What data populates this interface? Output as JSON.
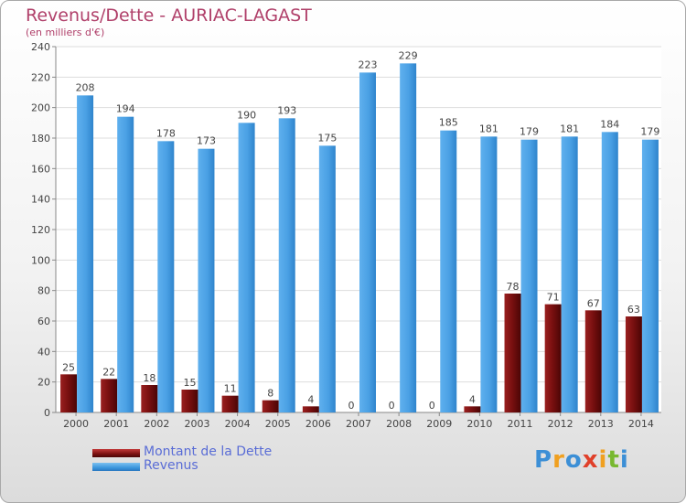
{
  "title": "Revenus/Dette - AURIAC-LAGAST",
  "subtitle": "(en milliers d'€)",
  "colors": {
    "dette": "#7a1010",
    "revenus": "#3c96dc",
    "title": "#b0406a",
    "legend_text": "#5a6dd6"
  },
  "chart_data": {
    "type": "bar",
    "title": "Revenus/Dette - AURIAC-LAGAST",
    "ylabel": "(en milliers d'€)",
    "xlabel": "",
    "categories": [
      "2000",
      "2001",
      "2002",
      "2003",
      "2004",
      "2005",
      "2006",
      "2007",
      "2008",
      "2009",
      "2010",
      "2011",
      "2012",
      "2013",
      "2014"
    ],
    "series": [
      {
        "name": "Montant de la Dette",
        "values": [
          25,
          22,
          18,
          15,
          11,
          8,
          4,
          0,
          0,
          0,
          4,
          78,
          71,
          67,
          63
        ]
      },
      {
        "name": "Revenus",
        "values": [
          208,
          194,
          178,
          173,
          190,
          193,
          175,
          223,
          229,
          185,
          181,
          179,
          181,
          184,
          179
        ]
      }
    ],
    "ylim": [
      0,
      240
    ],
    "yticks": [
      0,
      20,
      40,
      60,
      80,
      100,
      120,
      140,
      160,
      180,
      200,
      220,
      240
    ],
    "grid": true,
    "legend_position": "bottom-left"
  },
  "legend": [
    {
      "label": "Montant de la Dette",
      "color": "#7a1010"
    },
    {
      "label": "Revenus",
      "color": "#3c96dc"
    }
  ],
  "logo": {
    "letters": [
      "P",
      "r",
      "o",
      "x",
      "i",
      "t",
      "i"
    ]
  }
}
